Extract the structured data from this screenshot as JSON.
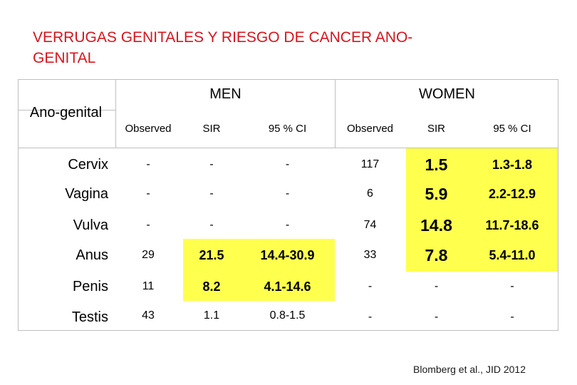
{
  "title_line1": "VERRUGAS GENITALES Y RIESGO DE CANCER ANO-",
  "title_line2": "GENITAL",
  "header": {
    "row_label": "Ano-genital",
    "men": "MEN",
    "women": "WOMEN",
    "observed": "Observed",
    "sir": "SIR",
    "ci": "95 % CI"
  },
  "rows": [
    {
      "label": "Cervix",
      "m_obs": "-",
      "m_sir": "-",
      "m_ci": "-",
      "w_obs": "117",
      "w_sir": "1.5",
      "w_ci": "1.3-1.8"
    },
    {
      "label": "Vagina",
      "m_obs": "-",
      "m_sir": "-",
      "m_ci": "-",
      "w_obs": "6",
      "w_sir": "5.9",
      "w_ci": "2.2-12.9"
    },
    {
      "label": "Vulva",
      "m_obs": "-",
      "m_sir": "-",
      "m_ci": "-",
      "w_obs": "74",
      "w_sir": "14.8",
      "w_ci": "11.7-18.6"
    },
    {
      "label": "Anus",
      "m_obs": "29",
      "m_sir": "21.5",
      "m_ci": "14.4-30.9",
      "w_obs": "33",
      "w_sir": "7.8",
      "w_ci": "5.4-11.0"
    },
    {
      "label": "Penis",
      "m_obs": "11",
      "m_sir": "8.2",
      "m_ci": "4.1-14.6",
      "w_obs": "-",
      "w_sir": "-",
      "w_ci": "-"
    },
    {
      "label": "Testis",
      "m_obs": "43",
      "m_sir": "1.1",
      "m_ci": "0.8-1.5",
      "w_obs": "-",
      "w_sir": "-",
      "w_ci": "-"
    }
  ],
  "citation_authors": "Blomberg et al.,",
  "citation_journal": "JID 2012",
  "highlight_color": "#ffff4d",
  "title_color": "#d9141b"
}
